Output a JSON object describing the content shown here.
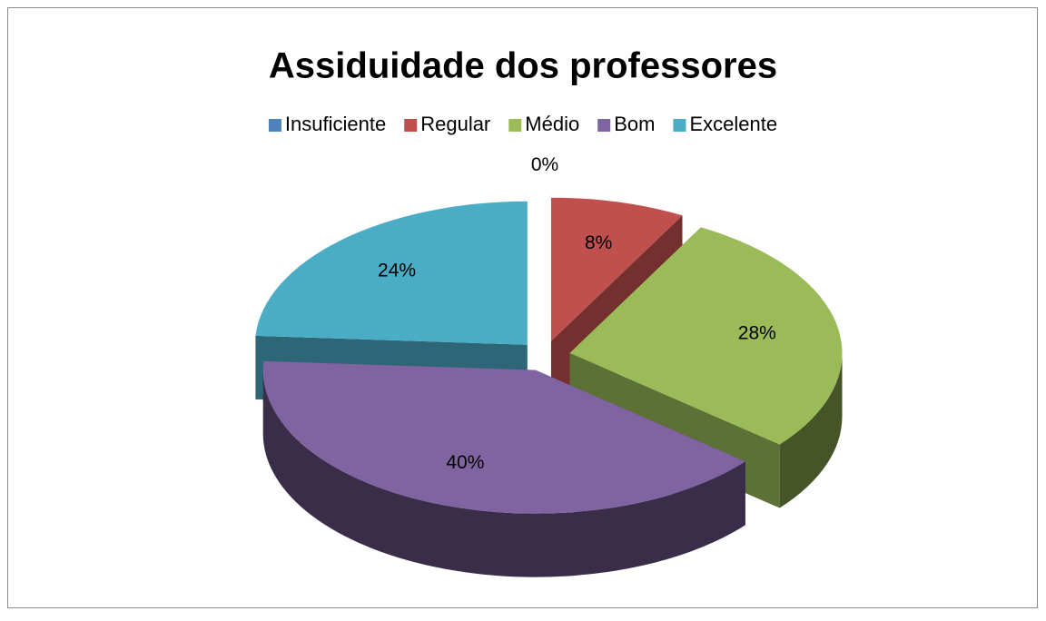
{
  "chart_data": {
    "type": "pie",
    "title": "Assiduidade dos professores",
    "categories": [
      "Insuficiente",
      "Regular",
      "Médio",
      "Bom",
      "Excelente"
    ],
    "values": [
      0,
      8,
      28,
      40,
      24
    ],
    "value_labels": [
      "0%",
      "8%",
      "28%",
      "40%",
      "24%"
    ],
    "colors": [
      "#4f81bd",
      "#c0504d",
      "#9bbb59",
      "#8064a2",
      "#4bacc6"
    ],
    "legend": "top",
    "style": "3d-exploded"
  }
}
